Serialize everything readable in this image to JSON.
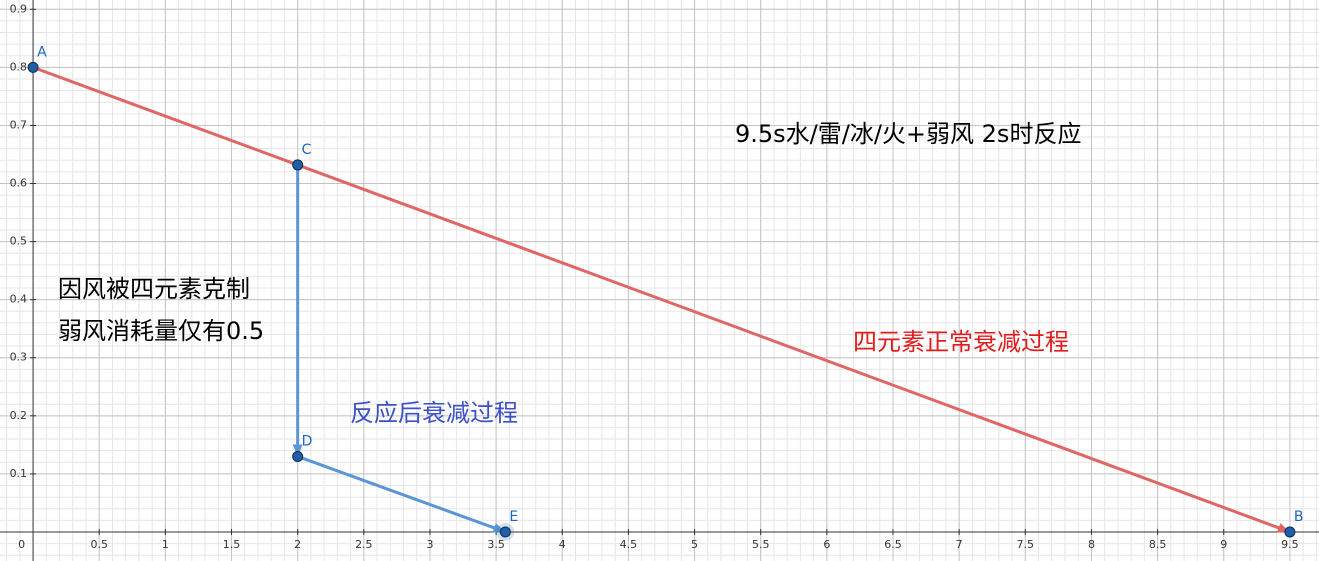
{
  "chart_data": {
    "type": "line",
    "xlim": [
      -0.25,
      9.72
    ],
    "ylim": [
      -0.05,
      0.916
    ],
    "xticks": [
      0,
      0.5,
      1,
      1.5,
      2,
      2.5,
      3,
      3.5,
      4,
      4.5,
      5,
      5.5,
      6,
      6.5,
      7,
      7.5,
      8,
      8.5,
      9,
      9.5
    ],
    "yticks": [
      0.1,
      0.2,
      0.3,
      0.4,
      0.5,
      0.6,
      0.7,
      0.8,
      0.9
    ],
    "grid": true,
    "point_color": "#1f5fa8",
    "label_color": "#1a66c2",
    "series": [
      {
        "color": "#e06666",
        "x": [
          0,
          2,
          9.5
        ],
        "y": [
          0.8,
          0.632,
          0
        ],
        "labels": [
          "A",
          "C",
          "B"
        ]
      },
      {
        "color": "#5b95d6",
        "x": [
          2,
          2,
          3.57
        ],
        "y": [
          0.632,
          0.13,
          0
        ],
        "labels": [
          null,
          "D",
          "E"
        ]
      }
    ],
    "annotations": [
      {
        "text": "9.5s水/雷/冰/火+弱风 2s时反应",
        "color": "#000000"
      },
      {
        "text": "因风被四元素克制",
        "color": "#000000"
      },
      {
        "text": "弱风消耗量仅有0.5",
        "color": "#000000"
      },
      {
        "text": "反应后衰减过程",
        "color": "#3c50c8"
      },
      {
        "text": "四元素正常衰减过程",
        "color": "#e01c1c"
      }
    ]
  }
}
